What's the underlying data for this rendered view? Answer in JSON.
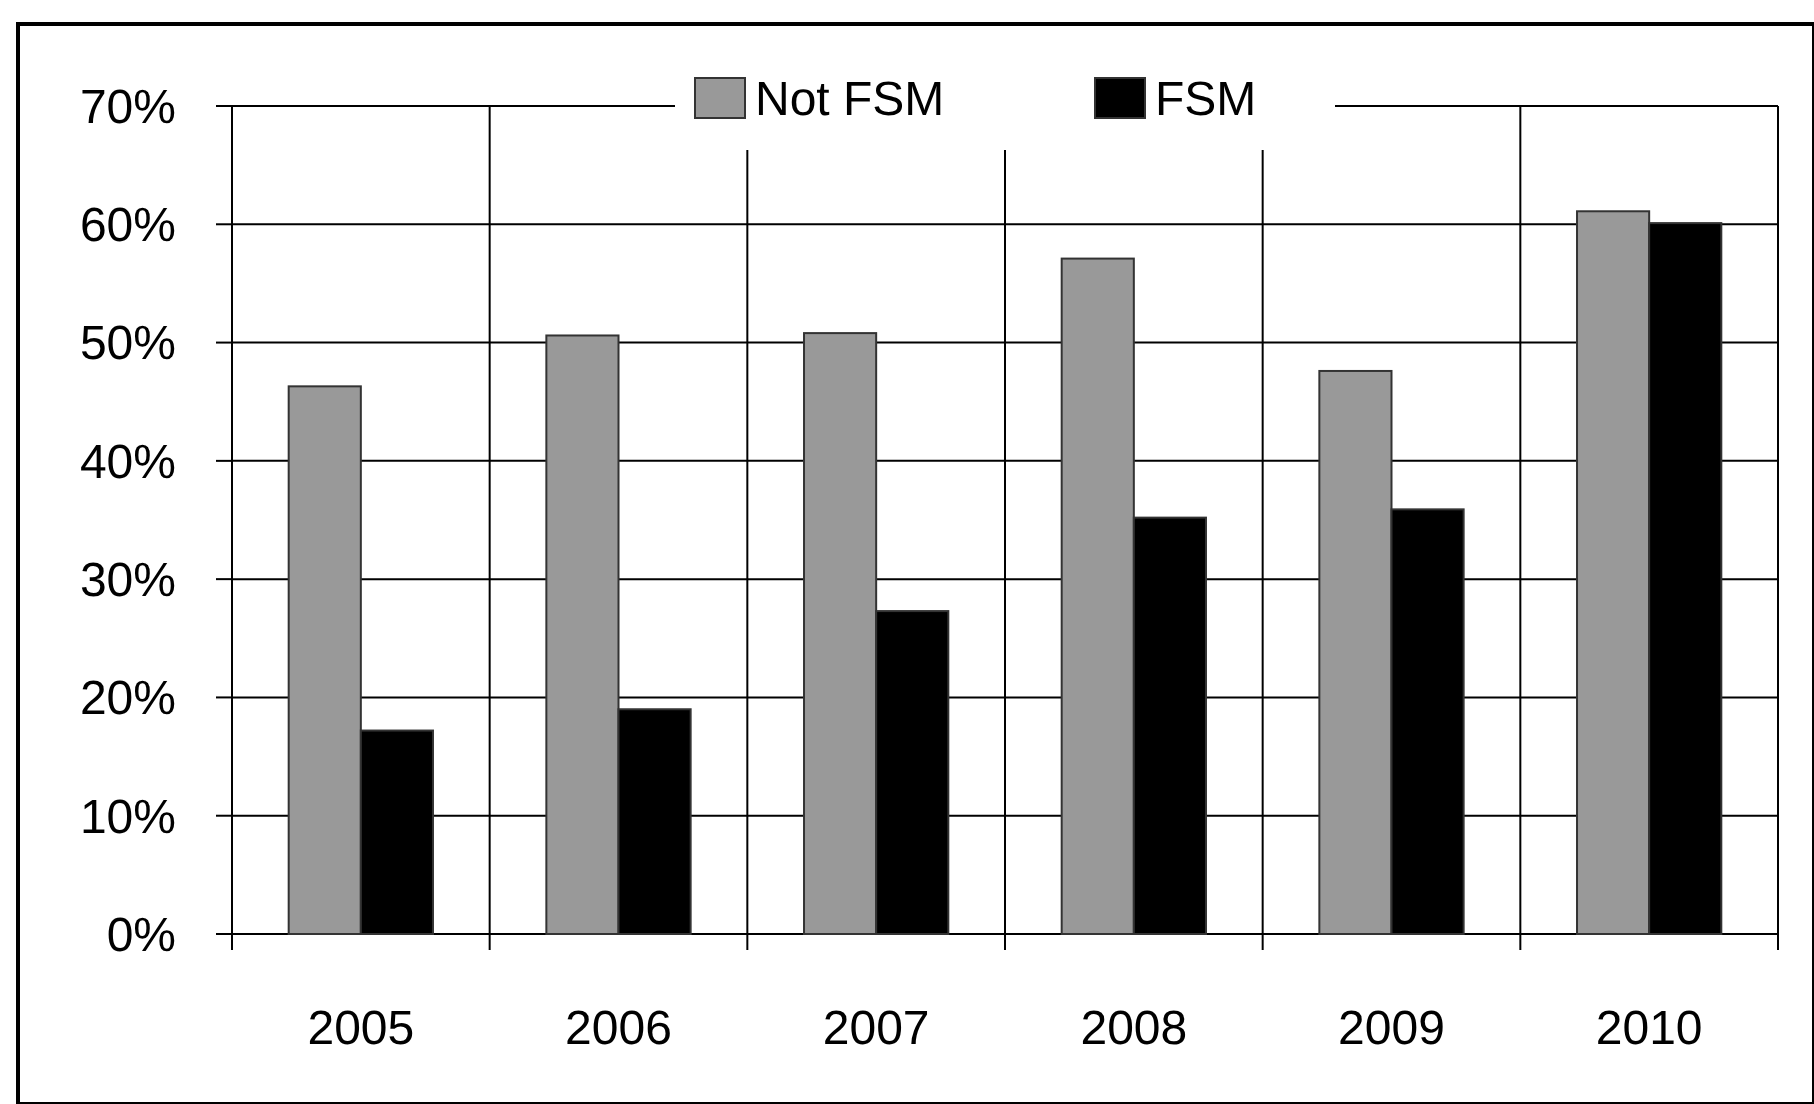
{
  "chart_data": {
    "type": "bar",
    "categories": [
      "2005",
      "2006",
      "2007",
      "2008",
      "2009",
      "2010"
    ],
    "series": [
      {
        "name": "Not FSM",
        "color": "#999999",
        "values": [
          46.3,
          50.6,
          50.8,
          57.1,
          47.6,
          61.1
        ]
      },
      {
        "name": "FSM",
        "color": "#000000",
        "values": [
          17.2,
          19.0,
          27.3,
          35.2,
          35.9,
          60.1
        ]
      }
    ],
    "ylim": [
      0,
      70
    ],
    "yticks": [
      {
        "value": 0,
        "label": "0%"
      },
      {
        "value": 10,
        "label": "10%"
      },
      {
        "value": 20,
        "label": "20%"
      },
      {
        "value": 30,
        "label": "30%"
      },
      {
        "value": 40,
        "label": "40%"
      },
      {
        "value": 50,
        "label": "50%"
      },
      {
        "value": 60,
        "label": "60%"
      },
      {
        "value": 70,
        "label": "70%"
      }
    ],
    "grid": true,
    "legend": "top"
  }
}
